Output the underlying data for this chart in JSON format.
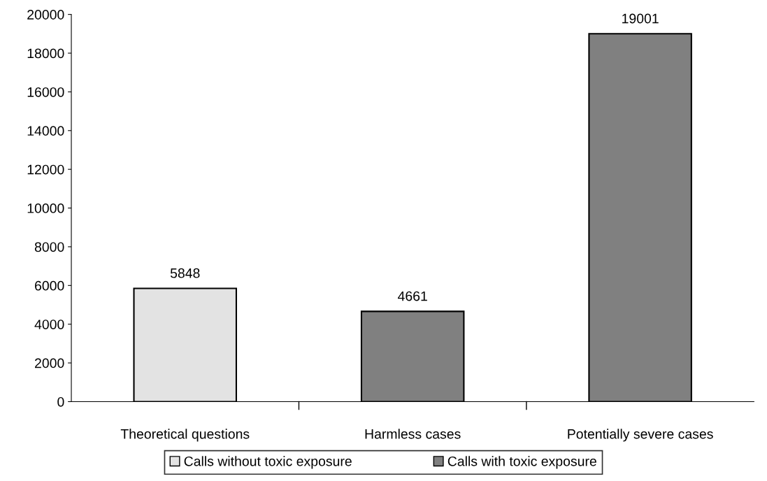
{
  "chart_data": {
    "type": "bar",
    "categories": [
      "Theoretical questions",
      "Harmless cases",
      "Potentially severe cases"
    ],
    "series": [
      {
        "name": "Calls without toxic exposure",
        "color": "#e3e3e3",
        "values": [
          5848,
          null,
          null
        ]
      },
      {
        "name": "Calls with toxic exposure",
        "color": "#808080",
        "values": [
          null,
          4661,
          19001
        ]
      }
    ],
    "stacked": true,
    "data_labels": true,
    "ylim": [
      0,
      20000
    ],
    "yticks": [
      0,
      2000,
      4000,
      6000,
      8000,
      10000,
      12000,
      14000,
      16000,
      18000,
      20000
    ],
    "grid": false,
    "legend": "bottom"
  }
}
